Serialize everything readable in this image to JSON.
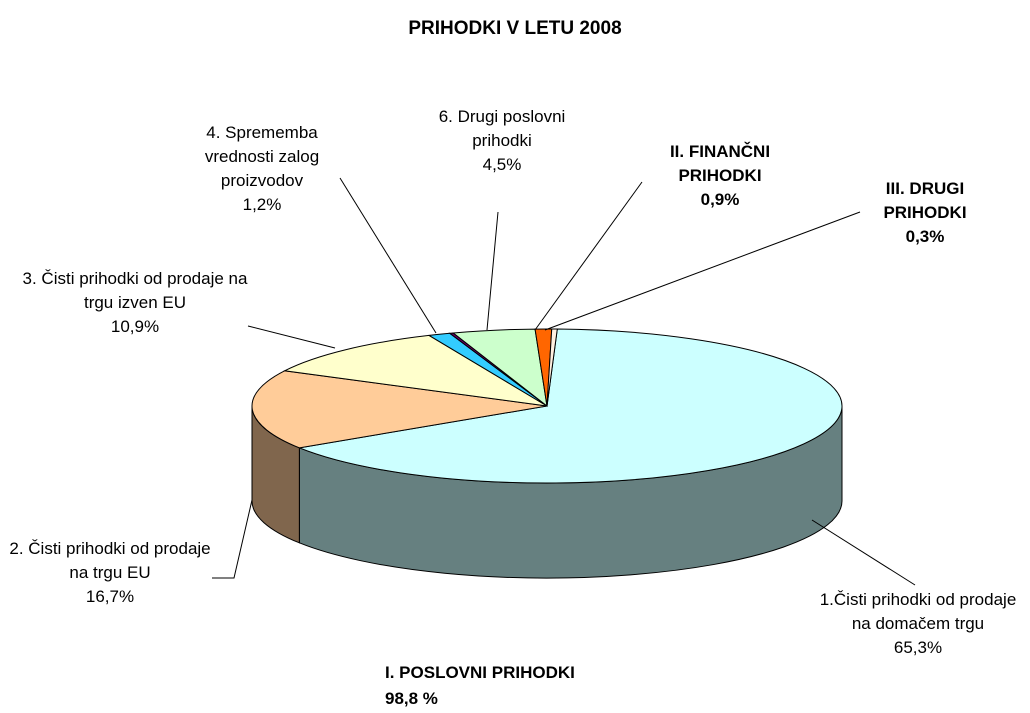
{
  "chart_data": {
    "type": "pie",
    "title": "PRIHODKI V LETU 2008",
    "categories": [
      "1.Čisti prihodki od prodaje na domačem trgu",
      "2. Čisti prihodki od prodaje na trgu EU",
      "3. Čisti prihodki od prodaje na trgu izven EU",
      "4. Sprememba vrednosti zalog proizvodov",
      null,
      "6. Drugi poslovni prihodki",
      "II. FINANČNI PRIHODKI",
      "III. DRUGI PRIHODKI"
    ],
    "values": [
      65.3,
      16.7,
      10.9,
      1.2,
      0.2,
      4.5,
      0.9,
      0.3
    ],
    "value_labels": [
      "65,3%",
      "16,7%",
      "10,9%",
      "1,2%",
      null,
      "4,5%",
      "0,9%",
      "0,3%"
    ],
    "colors": [
      "#ccffff",
      "#ffcc99",
      "#ffffcc",
      "#33ccff",
      "#660066",
      "#ccffcc",
      "#ff6600",
      "#fff0e0"
    ],
    "annotations": [
      "I. POSLOVNI PRIHODKI 98,8 %"
    ]
  }
}
